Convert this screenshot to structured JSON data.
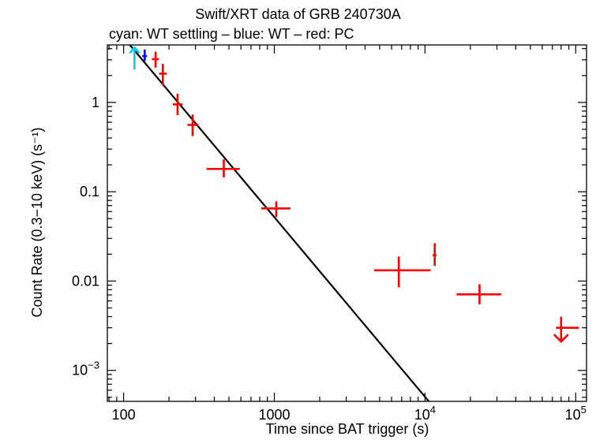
{
  "title": "Swift/XRT data of GRB 240730A",
  "subtitle": "cyan: WT settling – blue: WT – red: PC",
  "chart_data": {
    "type": "scatter",
    "title": "Swift/XRT data of GRB 240730A",
    "subtitle": "cyan: WT settling – blue: WT – red: PC",
    "xlabel": "Time since BAT trigger (s)",
    "ylabel": "Count Rate (0.3−10 keV) (s⁻¹)",
    "xscale": "log",
    "yscale": "log",
    "xlim": [
      78,
      118000
    ],
    "ylim": [
      0.00045,
      4.4
    ],
    "x_ticks": [
      {
        "value": 100,
        "label": "100"
      },
      {
        "value": 1000,
        "label": "1000"
      },
      {
        "value": 10000,
        "label": "10",
        "sup": "4"
      },
      {
        "value": 100000,
        "label": "10",
        "sup": "5"
      }
    ],
    "y_ticks": [
      {
        "value": 1,
        "label": "1"
      },
      {
        "value": 0.1,
        "label": "0.1"
      },
      {
        "value": 0.01,
        "label": "0.01"
      },
      {
        "value": 0.001,
        "label": "10",
        "sup": "−3"
      }
    ],
    "series": [
      {
        "name": "WT settling",
        "color": "#00ccff",
        "kind": "upper_limit_arrow_up",
        "points": [
          {
            "x": 118,
            "y": 3.1,
            "xlo": 116,
            "xhi": 120
          }
        ]
      },
      {
        "name": "WT",
        "color": "#0000ff",
        "points": [
          {
            "x": 138,
            "y": 3.3,
            "xlo": 133,
            "xhi": 143,
            "ylo": 2.9,
            "yhi": 3.9
          }
        ]
      },
      {
        "name": "PC",
        "color": "#ff0000",
        "points": [
          {
            "x": 163,
            "y": 3.05,
            "xlo": 154,
            "xhi": 171,
            "ylo": 2.45,
            "yhi": 3.7
          },
          {
            "x": 182,
            "y": 2.1,
            "xlo": 172,
            "xhi": 193,
            "ylo": 1.55,
            "yhi": 2.7
          },
          {
            "x": 228,
            "y": 0.95,
            "xlo": 212,
            "xhi": 246,
            "ylo": 0.72,
            "yhi": 1.25
          },
          {
            "x": 287,
            "y": 0.56,
            "xlo": 265,
            "xhi": 313,
            "ylo": 0.42,
            "yhi": 0.73
          },
          {
            "x": 462,
            "y": 0.18,
            "xlo": 355,
            "xhi": 590,
            "ylo": 0.145,
            "yhi": 0.23
          },
          {
            "x": 1030,
            "y": 0.065,
            "xlo": 820,
            "xhi": 1280,
            "ylo": 0.052,
            "yhi": 0.078
          },
          {
            "x": 6700,
            "y": 0.0132,
            "xlo": 4600,
            "xhi": 10900,
            "ylo": 0.0085,
            "yhi": 0.0188
          },
          {
            "x": 11600,
            "y": 0.0195,
            "xlo": 11250,
            "xhi": 11900,
            "ylo": 0.0148,
            "yhi": 0.0265
          },
          {
            "x": 23000,
            "y": 0.0071,
            "xlo": 16200,
            "xhi": 32000,
            "ylo": 0.0055,
            "yhi": 0.0092
          }
        ]
      },
      {
        "name": "PC upper limit",
        "color": "#ff0000",
        "kind": "upper_limit_arrow_down",
        "points": [
          {
            "x": 80000,
            "y": 0.003,
            "xlo": 74000,
            "xhi": 105000,
            "yarrow_end": 0.0021
          }
        ]
      }
    ],
    "model_line": {
      "color": "#000000",
      "points": [
        {
          "x": 110,
          "y": 4.4
        },
        {
          "x": 10600,
          "y": 0.00045
        }
      ]
    }
  }
}
